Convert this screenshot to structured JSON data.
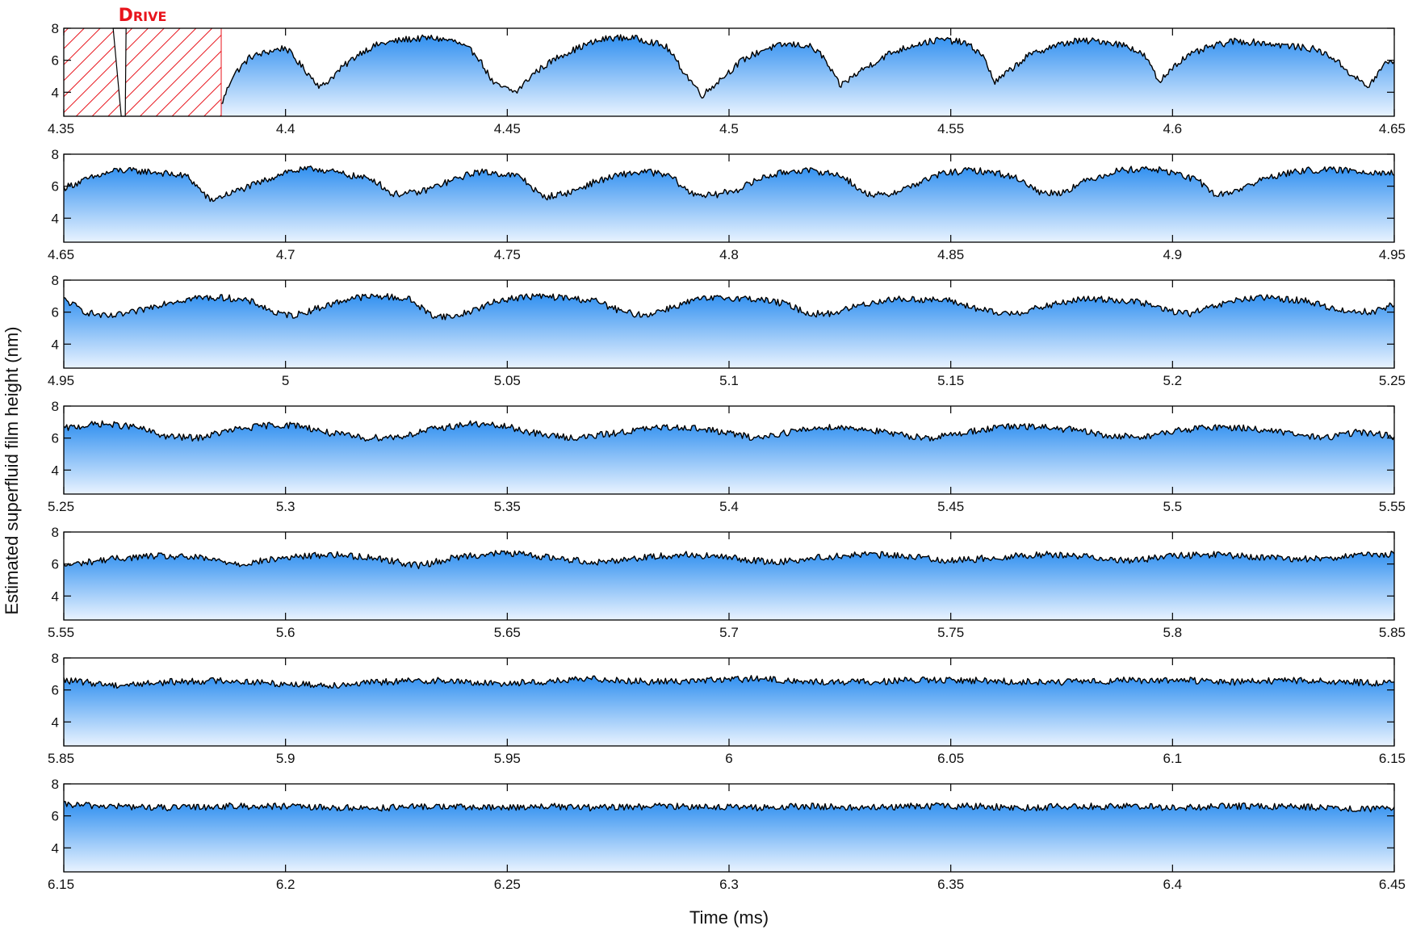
{
  "chart_data": {
    "type": "area",
    "xlabel": "Time (ms)",
    "ylabel": "Estimated superfluid film height (nm)",
    "yticks": [
      "4",
      "6",
      "8"
    ],
    "ylim": [
      2.5,
      8
    ],
    "line_color": "#000000",
    "fill_gradient": [
      "#2f8ff0",
      "#e9f3ff"
    ],
    "annotation": {
      "text": "Drive",
      "color": "#e8141c",
      "x_start": 4.35,
      "x_end": 4.3855,
      "y_range": [
        2.5,
        8
      ]
    },
    "panels": [
      {
        "xlim": [
          4.35,
          4.65
        ],
        "xticks": [
          "4.35",
          "4.4",
          "4.45",
          "4.5",
          "4.55",
          "4.6",
          "4.65"
        ],
        "x": [
          4.3855,
          4.388,
          4.392,
          4.397,
          4.4,
          4.404,
          4.408,
          4.413,
          4.417,
          4.421,
          4.427,
          4.433,
          4.438,
          4.443,
          4.447,
          4.452,
          4.456,
          4.462,
          4.468,
          4.473,
          4.478,
          4.482,
          4.486,
          4.49,
          4.494,
          4.498,
          4.503,
          4.508,
          4.513,
          4.518,
          4.521,
          4.525,
          4.53,
          4.536,
          4.542,
          4.548,
          4.553,
          4.557,
          4.56,
          4.563,
          4.567,
          4.572,
          4.578,
          4.584,
          4.59,
          4.594,
          4.597,
          4.6,
          4.603,
          4.608,
          4.614,
          4.62,
          4.626,
          4.632,
          4.636,
          4.64,
          4.644,
          4.648,
          4.65
        ],
        "y": [
          3.2,
          5.0,
          6.2,
          6.6,
          6.8,
          5.5,
          4.3,
          5.6,
          6.5,
          7.0,
          7.3,
          7.4,
          7.2,
          6.4,
          4.5,
          4.0,
          5.2,
          6.3,
          7.0,
          7.4,
          7.4,
          7.2,
          6.8,
          5.2,
          3.8,
          4.8,
          6.0,
          6.7,
          7.0,
          6.9,
          6.3,
          4.4,
          5.4,
          6.4,
          7.0,
          7.3,
          7.1,
          6.4,
          4.6,
          5.3,
          6.2,
          6.8,
          7.2,
          7.2,
          6.9,
          6.2,
          4.6,
          5.6,
          6.2,
          6.8,
          7.2,
          7.1,
          6.9,
          6.7,
          6.2,
          5.2,
          4.3,
          5.8,
          6.0
        ]
      },
      {
        "xlim": [
          4.65,
          4.95
        ],
        "xticks": [
          "4.65",
          "4.7",
          "4.75",
          "4.8",
          "4.85",
          "4.9",
          "4.95"
        ],
        "x": [
          4.65,
          4.656,
          4.662,
          4.67,
          4.678,
          4.683,
          4.688,
          4.694,
          4.7,
          4.707,
          4.714,
          4.72,
          4.724,
          4.73,
          4.737,
          4.743,
          4.748,
          4.753,
          4.758,
          4.764,
          4.77,
          4.777,
          4.782,
          4.787,
          4.791,
          4.796,
          4.802,
          4.808,
          4.815,
          4.821,
          4.826,
          4.83,
          4.835,
          4.841,
          4.848,
          4.855,
          4.861,
          4.866,
          4.87,
          4.875,
          4.881,
          4.888,
          4.895,
          4.901,
          4.906,
          4.91,
          4.915,
          4.922,
          4.93,
          4.938,
          4.945,
          4.95
        ],
        "y": [
          5.9,
          6.5,
          7.0,
          6.9,
          6.6,
          5.1,
          5.6,
          6.2,
          6.9,
          7.1,
          6.7,
          6.4,
          5.5,
          5.6,
          6.3,
          6.9,
          6.8,
          6.6,
          5.3,
          5.6,
          6.3,
          6.8,
          6.9,
          6.6,
          5.6,
          5.4,
          5.8,
          6.6,
          7.0,
          6.9,
          6.6,
          5.6,
          5.4,
          6.0,
          6.8,
          7.0,
          6.8,
          6.4,
          5.6,
          5.6,
          6.4,
          7.0,
          7.1,
          6.8,
          6.3,
          5.4,
          5.8,
          6.6,
          7.0,
          7.0,
          6.9,
          6.8
        ]
      },
      {
        "xlim": [
          4.95,
          5.25
        ],
        "xticks": [
          "4.95",
          "5",
          "5.05",
          "5.1",
          "5.15",
          "5.2",
          "5.25"
        ],
        "x": [
          4.95,
          4.955,
          4.96,
          4.966,
          4.973,
          4.98,
          4.987,
          4.993,
          4.998,
          5.002,
          5.008,
          5.015,
          5.022,
          5.028,
          5.033,
          5.038,
          5.043,
          5.049,
          5.056,
          5.063,
          5.07,
          5.076,
          5.081,
          5.087,
          5.093,
          5.1,
          5.107,
          5.113,
          5.118,
          5.123,
          5.129,
          5.136,
          5.143,
          5.15,
          5.156,
          5.161,
          5.166,
          5.172,
          5.179,
          5.186,
          5.193,
          5.199,
          5.204,
          5.209,
          5.215,
          5.222,
          5.23,
          5.238,
          5.245,
          5.25
        ],
        "y": [
          6.8,
          6.0,
          5.7,
          6.0,
          6.6,
          6.9,
          6.9,
          6.6,
          5.9,
          5.8,
          6.3,
          6.9,
          7.0,
          6.8,
          5.8,
          5.7,
          6.2,
          6.8,
          7.0,
          6.9,
          6.7,
          6.0,
          5.8,
          6.3,
          6.8,
          6.9,
          6.8,
          6.5,
          5.9,
          5.9,
          6.4,
          6.8,
          6.8,
          6.7,
          6.2,
          5.9,
          6.0,
          6.4,
          6.8,
          6.8,
          6.6,
          6.1,
          5.9,
          6.3,
          6.8,
          6.9,
          6.7,
          6.1,
          6.0,
          6.5
        ]
      },
      {
        "xlim": [
          5.25,
          5.55
        ],
        "xticks": [
          "5.25",
          "5.3",
          "5.35",
          "5.4",
          "5.45",
          "5.5",
          "5.55"
        ],
        "x": [
          5.25,
          5.258,
          5.266,
          5.273,
          5.28,
          5.288,
          5.296,
          5.303,
          5.31,
          5.318,
          5.326,
          5.334,
          5.342,
          5.35,
          5.358,
          5.366,
          5.374,
          5.382,
          5.39,
          5.398,
          5.406,
          5.414,
          5.422,
          5.43,
          5.438,
          5.446,
          5.454,
          5.462,
          5.47,
          5.478,
          5.486,
          5.494,
          5.502,
          5.51,
          5.518,
          5.526,
          5.534,
          5.542,
          5.55
        ],
        "y": [
          6.6,
          6.9,
          6.7,
          6.1,
          6.0,
          6.5,
          6.8,
          6.8,
          6.3,
          6.0,
          6.1,
          6.6,
          6.9,
          6.7,
          6.2,
          6.0,
          6.3,
          6.6,
          6.7,
          6.4,
          6.0,
          6.4,
          6.7,
          6.6,
          6.2,
          6.0,
          6.4,
          6.7,
          6.7,
          6.5,
          6.1,
          6.1,
          6.5,
          6.7,
          6.6,
          6.3,
          6.0,
          6.4,
          6.1
        ]
      },
      {
        "xlim": [
          5.55,
          5.85
        ],
        "xticks": [
          "5.55",
          "5.6",
          "5.65",
          "5.7",
          "5.75",
          "5.8",
          "5.85"
        ],
        "x": [
          5.55,
          5.56,
          5.57,
          5.58,
          5.59,
          5.6,
          5.61,
          5.62,
          5.63,
          5.64,
          5.65,
          5.66,
          5.67,
          5.68,
          5.69,
          5.7,
          5.71,
          5.72,
          5.73,
          5.74,
          5.75,
          5.76,
          5.77,
          5.78,
          5.79,
          5.8,
          5.81,
          5.82,
          5.83,
          5.84,
          5.85
        ],
        "y": [
          5.9,
          6.3,
          6.5,
          6.4,
          6.0,
          6.4,
          6.6,
          6.4,
          5.9,
          6.5,
          6.7,
          6.4,
          6.1,
          6.4,
          6.6,
          6.4,
          6.1,
          6.4,
          6.6,
          6.5,
          6.2,
          6.4,
          6.6,
          6.5,
          6.2,
          6.5,
          6.6,
          6.4,
          6.3,
          6.5,
          6.6
        ]
      },
      {
        "xlim": [
          5.85,
          6.15
        ],
        "xticks": [
          "5.85",
          "5.9",
          "5.95",
          "6",
          "6.05",
          "6.1",
          "6.15"
        ],
        "x": [
          5.85,
          5.862,
          5.874,
          5.886,
          5.898,
          5.91,
          5.922,
          5.934,
          5.946,
          5.958,
          5.97,
          5.982,
          5.994,
          6.006,
          6.018,
          6.03,
          6.042,
          6.054,
          6.066,
          6.078,
          6.09,
          6.102,
          6.114,
          6.126,
          6.138,
          6.15
        ],
        "y": [
          6.6,
          6.3,
          6.5,
          6.6,
          6.4,
          6.3,
          6.5,
          6.6,
          6.4,
          6.5,
          6.7,
          6.5,
          6.6,
          6.7,
          6.5,
          6.5,
          6.6,
          6.6,
          6.5,
          6.5,
          6.6,
          6.6,
          6.5,
          6.6,
          6.5,
          6.4
        ]
      },
      {
        "xlim": [
          6.15,
          6.45
        ],
        "xticks": [
          "6.15",
          "6.2",
          "6.25",
          "6.3",
          "6.35",
          "6.4",
          "6.45"
        ],
        "x": [
          6.15,
          6.162,
          6.174,
          6.186,
          6.198,
          6.21,
          6.222,
          6.234,
          6.246,
          6.258,
          6.27,
          6.282,
          6.294,
          6.306,
          6.318,
          6.33,
          6.342,
          6.354,
          6.366,
          6.378,
          6.39,
          6.402,
          6.414,
          6.426,
          6.438,
          6.45
        ],
        "y": [
          6.7,
          6.6,
          6.5,
          6.6,
          6.6,
          6.5,
          6.5,
          6.6,
          6.5,
          6.6,
          6.5,
          6.6,
          6.6,
          6.5,
          6.6,
          6.5,
          6.6,
          6.6,
          6.5,
          6.6,
          6.6,
          6.5,
          6.6,
          6.6,
          6.5,
          6.4
        ]
      }
    ]
  }
}
